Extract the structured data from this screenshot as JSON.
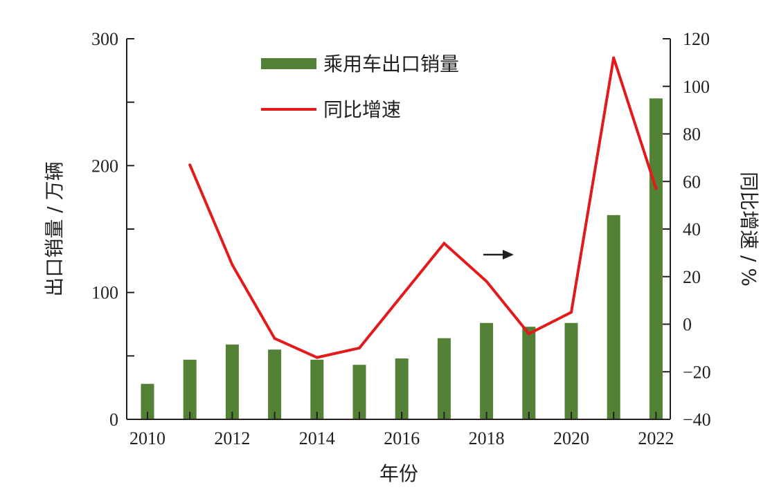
{
  "chart_data": {
    "type": "bar",
    "categories": [
      2010,
      2011,
      2012,
      2013,
      2014,
      2015,
      2016,
      2017,
      2018,
      2019,
      2020,
      2021,
      2022
    ],
    "x_tick_labels": [
      "2010",
      "2012",
      "2014",
      "2016",
      "2018",
      "2020",
      "2022"
    ],
    "series": [
      {
        "name": "乘用车出口销量",
        "type": "bar",
        "axis": "left",
        "color": "#538135",
        "values": [
          28,
          47,
          59,
          55,
          47,
          43,
          48,
          64,
          76,
          73,
          76,
          161,
          253
        ]
      },
      {
        "name": "同比增速",
        "type": "line",
        "axis": "right",
        "color": "#e31a1c",
        "values": [
          null,
          67,
          25,
          -6,
          -14,
          -10,
          12,
          34,
          18,
          -4,
          5,
          112,
          57
        ]
      }
    ],
    "xlabel": "年份",
    "ylabel_left": "出口销量 / 万辆",
    "ylabel_right": "同比增速 / %",
    "ylim_left": [
      0,
      300
    ],
    "ylim_right": [
      -40,
      120
    ],
    "yticks_left": [
      "0",
      "100",
      "200",
      "300"
    ],
    "yticks_right": [
      "−40",
      "−20",
      "0",
      "20",
      "40",
      "60",
      "80",
      "100",
      "120"
    ],
    "grid": false,
    "legend_position": "top-center",
    "annotation": "arrow pointing right"
  }
}
